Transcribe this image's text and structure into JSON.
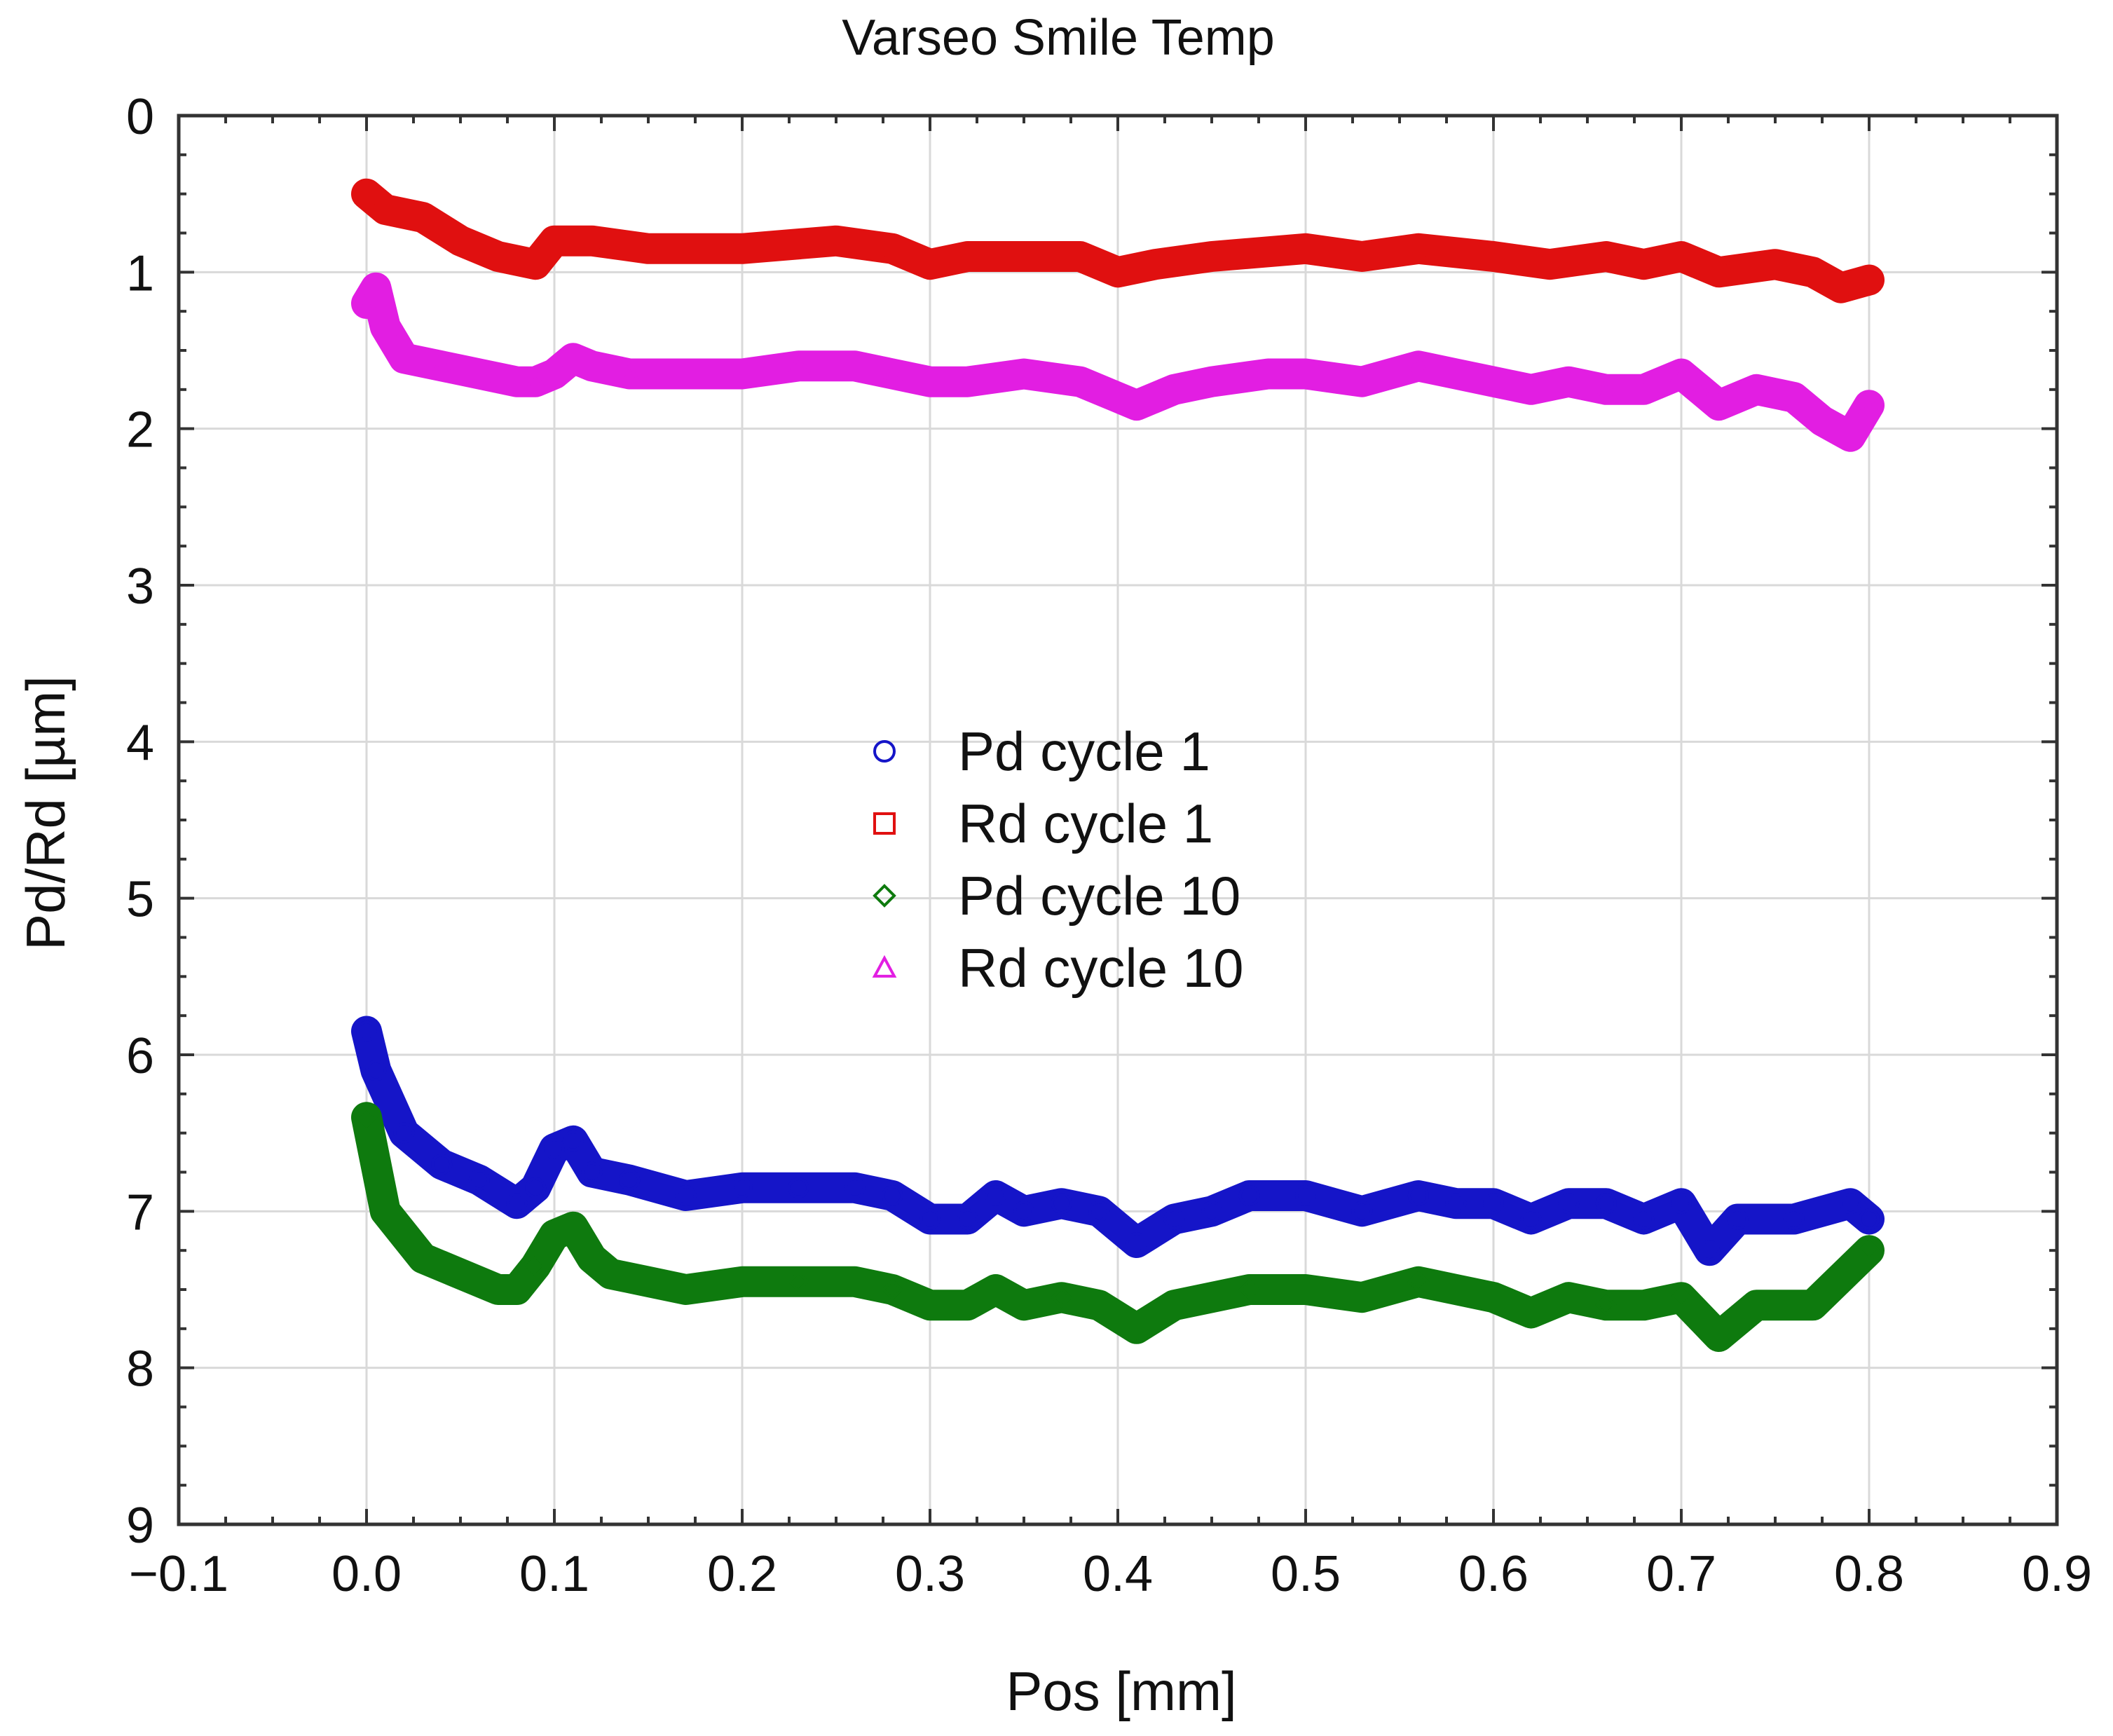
{
  "chart_data": {
    "type": "line",
    "title": "Varseo Smile Temp",
    "xlabel": "Pos [mm]",
    "ylabel": "Pd/Rd [µm]",
    "xlim": [
      -0.1,
      0.9
    ],
    "ylim": [
      0,
      9
    ],
    "y_inverted": true,
    "grid": true,
    "legend_position": "center",
    "x_ticks": [
      -0.1,
      0.0,
      0.1,
      0.2,
      0.3,
      0.4,
      0.5,
      0.6,
      0.7,
      0.8,
      0.9
    ],
    "x_tick_labels": [
      "−0.1",
      "0.0",
      "0.1",
      "0.2",
      "0.3",
      "0.4",
      "0.5",
      "0.6",
      "0.7",
      "0.8",
      "0.9"
    ],
    "y_ticks": [
      0,
      1,
      2,
      3,
      4,
      5,
      6,
      7,
      8,
      9
    ],
    "y_tick_labels": [
      "0",
      "1",
      "2",
      "3",
      "4",
      "5",
      "6",
      "7",
      "8",
      "9"
    ],
    "series": [
      {
        "name": "Pd cycle 1",
        "marker": "circle",
        "color": "#1515c8",
        "x": [
          0.0,
          0.005,
          0.02,
          0.04,
          0.06,
          0.08,
          0.09,
          0.1,
          0.11,
          0.12,
          0.14,
          0.17,
          0.2,
          0.23,
          0.26,
          0.28,
          0.3,
          0.32,
          0.335,
          0.35,
          0.37,
          0.39,
          0.41,
          0.43,
          0.45,
          0.47,
          0.5,
          0.53,
          0.56,
          0.58,
          0.6,
          0.62,
          0.64,
          0.66,
          0.68,
          0.7,
          0.715,
          0.73,
          0.76,
          0.79,
          0.8
        ],
        "y": [
          5.85,
          6.1,
          6.5,
          6.7,
          6.8,
          6.95,
          6.85,
          6.6,
          6.55,
          6.75,
          6.8,
          6.9,
          6.85,
          6.85,
          6.85,
          6.9,
          7.05,
          7.05,
          6.9,
          7.0,
          6.95,
          7.0,
          7.2,
          7.05,
          7.0,
          6.9,
          6.9,
          7.0,
          6.9,
          6.95,
          6.95,
          7.05,
          6.95,
          6.95,
          7.05,
          6.95,
          7.25,
          7.05,
          7.05,
          6.95,
          7.05
        ]
      },
      {
        "name": "Rd cycle 1",
        "marker": "square",
        "color": "#e01010",
        "x": [
          0.0,
          0.01,
          0.03,
          0.05,
          0.07,
          0.09,
          0.1,
          0.12,
          0.15,
          0.2,
          0.25,
          0.28,
          0.3,
          0.32,
          0.35,
          0.38,
          0.4,
          0.42,
          0.45,
          0.5,
          0.53,
          0.56,
          0.6,
          0.63,
          0.66,
          0.68,
          0.7,
          0.72,
          0.75,
          0.77,
          0.785,
          0.8
        ],
        "y": [
          0.5,
          0.6,
          0.65,
          0.8,
          0.9,
          0.95,
          0.8,
          0.8,
          0.85,
          0.85,
          0.8,
          0.85,
          0.95,
          0.9,
          0.9,
          0.9,
          1.0,
          0.95,
          0.9,
          0.85,
          0.9,
          0.85,
          0.9,
          0.95,
          0.9,
          0.95,
          0.9,
          1.0,
          0.95,
          1.0,
          1.1,
          1.05
        ]
      },
      {
        "name": "Pd cycle 10",
        "marker": "diamond",
        "color": "#0e7a0e",
        "x": [
          0.0,
          0.01,
          0.03,
          0.05,
          0.07,
          0.08,
          0.09,
          0.1,
          0.11,
          0.12,
          0.13,
          0.15,
          0.17,
          0.2,
          0.23,
          0.26,
          0.28,
          0.3,
          0.32,
          0.335,
          0.35,
          0.37,
          0.39,
          0.41,
          0.43,
          0.45,
          0.47,
          0.5,
          0.53,
          0.56,
          0.58,
          0.6,
          0.62,
          0.64,
          0.66,
          0.68,
          0.7,
          0.72,
          0.74,
          0.77,
          0.8
        ],
        "y": [
          6.4,
          7.0,
          7.3,
          7.4,
          7.5,
          7.5,
          7.35,
          7.15,
          7.1,
          7.3,
          7.4,
          7.45,
          7.5,
          7.45,
          7.45,
          7.45,
          7.5,
          7.6,
          7.6,
          7.5,
          7.6,
          7.55,
          7.6,
          7.75,
          7.6,
          7.55,
          7.5,
          7.5,
          7.55,
          7.45,
          7.5,
          7.55,
          7.65,
          7.55,
          7.6,
          7.6,
          7.55,
          7.8,
          7.6,
          7.6,
          7.25
        ]
      },
      {
        "name": "Rd cycle 10",
        "marker": "triangle",
        "color": "#e21ee2",
        "x": [
          0.0,
          0.005,
          0.01,
          0.02,
          0.04,
          0.06,
          0.08,
          0.09,
          0.1,
          0.11,
          0.12,
          0.14,
          0.17,
          0.2,
          0.23,
          0.26,
          0.28,
          0.3,
          0.32,
          0.35,
          0.38,
          0.4,
          0.41,
          0.43,
          0.45,
          0.48,
          0.5,
          0.53,
          0.56,
          0.58,
          0.6,
          0.62,
          0.64,
          0.66,
          0.68,
          0.7,
          0.71,
          0.72,
          0.74,
          0.76,
          0.775,
          0.79,
          0.8
        ],
        "y": [
          1.2,
          1.1,
          1.35,
          1.55,
          1.6,
          1.65,
          1.7,
          1.7,
          1.65,
          1.55,
          1.6,
          1.65,
          1.65,
          1.65,
          1.6,
          1.6,
          1.65,
          1.7,
          1.7,
          1.65,
          1.7,
          1.8,
          1.85,
          1.75,
          1.7,
          1.65,
          1.65,
          1.7,
          1.6,
          1.65,
          1.7,
          1.75,
          1.7,
          1.75,
          1.75,
          1.65,
          1.75,
          1.85,
          1.75,
          1.8,
          1.95,
          2.05,
          1.85
        ]
      }
    ]
  }
}
